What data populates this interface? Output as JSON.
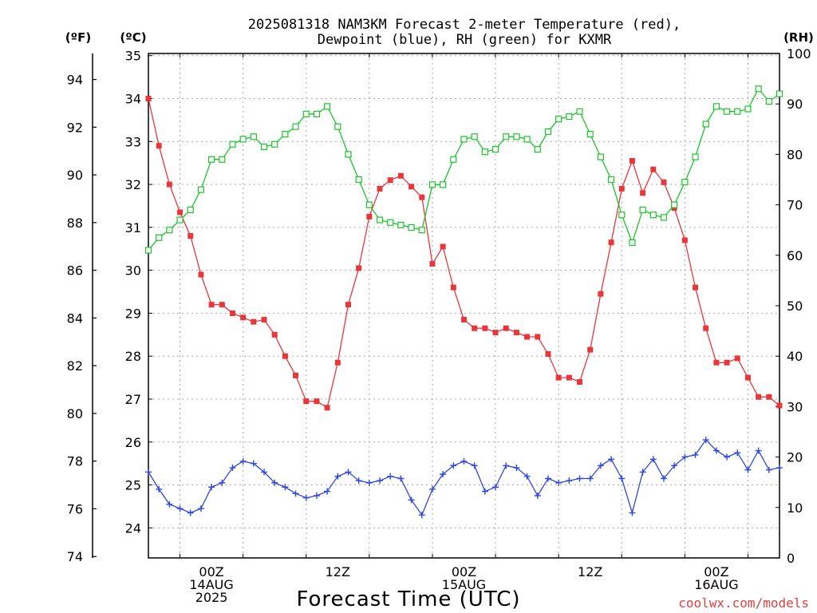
{
  "chart_data": {
    "type": "line",
    "title_line1": "2025081318 NAM3KM Forecast 2-meter Temperature (red),",
    "title_line2": "Dewpoint (blue), RH (green) for KXMR",
    "xlabel": "Forecast Time (UTC)",
    "watermark": "coolwx.com/models",
    "unit_left_f": "(ºF)",
    "unit_left_c": "(ºC)",
    "unit_right": "(RH)",
    "xlim": [
      -6,
      54
    ],
    "ylim_c": [
      23.3,
      35.05
    ],
    "ylim_rh": [
      0,
      100
    ],
    "f_ticks": [
      "74",
      "76",
      "78",
      "80",
      "82",
      "84",
      "86",
      "88",
      "90",
      "92",
      "94"
    ],
    "c_ticks": [
      "24",
      "25",
      "26",
      "27",
      "28",
      "29",
      "30",
      "31",
      "32",
      "33",
      "34",
      "35"
    ],
    "rh_ticks": [
      "0",
      "10",
      "20",
      "30",
      "40",
      "50",
      "60",
      "70",
      "80",
      "90",
      "100"
    ],
    "x_ticks": [
      {
        "hour": 0,
        "labels": [
          "00Z",
          "14AUG",
          "2025"
        ]
      },
      {
        "hour": 12,
        "labels": [
          "12Z"
        ]
      },
      {
        "hour": 24,
        "labels": [
          "00Z",
          "15AUG"
        ]
      },
      {
        "hour": 36,
        "labels": [
          "12Z"
        ]
      },
      {
        "hour": 48,
        "labels": [
          "00Z",
          "16AUG"
        ]
      }
    ],
    "hours": [
      -6,
      -5,
      -4,
      -3,
      -2,
      -1,
      0,
      1,
      2,
      3,
      4,
      5,
      6,
      7,
      8,
      9,
      10,
      11,
      12,
      13,
      14,
      15,
      16,
      17,
      18,
      19,
      20,
      21,
      22,
      23,
      24,
      25,
      26,
      27,
      28,
      29,
      30,
      31,
      32,
      33,
      34,
      35,
      36,
      37,
      38,
      39,
      40,
      41,
      42,
      43,
      44,
      45,
      46,
      47,
      48,
      49,
      50,
      51,
      52,
      53,
      54
    ],
    "series": [
      {
        "name": "Temperature",
        "color": "#e8363a",
        "marker": "square-filled",
        "axis": "c",
        "values": [
          34.0,
          32.9,
          32.0,
          31.35,
          30.8,
          29.9,
          29.2,
          29.2,
          29.0,
          28.9,
          28.8,
          28.85,
          28.5,
          28.0,
          27.55,
          26.95,
          26.95,
          26.8,
          27.85,
          29.2,
          30.05,
          31.25,
          31.9,
          32.1,
          32.2,
          31.95,
          31.7,
          30.15,
          30.55,
          29.6,
          28.85,
          28.65,
          28.65,
          28.55,
          28.65,
          28.55,
          28.45,
          28.45,
          28.05,
          27.5,
          27.5,
          27.4,
          28.15,
          29.45,
          30.65,
          31.9,
          32.55,
          31.8,
          32.35,
          32.05,
          31.45,
          30.7,
          29.6,
          28.65,
          27.85,
          27.85,
          27.95,
          27.5,
          27.05,
          27.05,
          26.85
        ]
      },
      {
        "name": "Dewpoint",
        "color": "#2f47e0",
        "marker": "plus",
        "axis": "c",
        "values": [
          25.3,
          24.9,
          24.55,
          24.45,
          24.35,
          24.45,
          24.95,
          25.05,
          25.4,
          25.55,
          25.5,
          25.3,
          25.05,
          24.95,
          24.8,
          24.7,
          24.75,
          24.85,
          25.2,
          25.3,
          25.1,
          25.05,
          25.1,
          25.2,
          25.15,
          24.65,
          24.3,
          24.9,
          25.25,
          25.45,
          25.55,
          25.45,
          24.85,
          24.95,
          25.45,
          25.4,
          25.2,
          24.75,
          25.15,
          25.05,
          25.1,
          25.15,
          25.15,
          25.45,
          25.6,
          25.15,
          24.35,
          25.3,
          25.6,
          25.15,
          25.45,
          25.65,
          25.7,
          26.05,
          25.8,
          25.65,
          25.75,
          25.35,
          25.8,
          25.35,
          25.4
        ]
      },
      {
        "name": "RH",
        "color": "#19c62a",
        "marker": "square-open",
        "axis": "rh",
        "values": [
          61,
          63.5,
          65,
          67,
          69,
          73,
          79,
          79,
          82,
          83,
          83.5,
          81.5,
          82,
          84,
          85.5,
          88,
          88,
          89.5,
          85.5,
          80,
          75,
          70,
          67,
          66.5,
          66,
          65.5,
          65,
          74,
          74,
          79,
          83,
          83.5,
          80.5,
          81,
          83.5,
          83.5,
          83,
          81,
          84.5,
          87,
          87.5,
          88.5,
          84,
          79.5,
          75,
          68,
          62.5,
          69,
          68,
          67.5,
          70,
          74.5,
          79.5,
          86,
          89.5,
          88.5,
          88.5,
          89,
          93,
          90.5,
          92
        ]
      }
    ]
  }
}
